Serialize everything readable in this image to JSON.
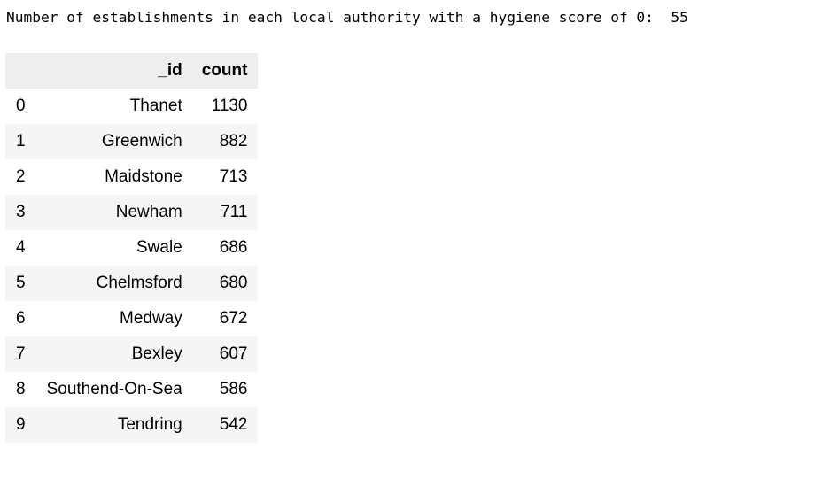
{
  "output": {
    "message": "Number of establishments in each local authority with a hygiene score of 0:  55"
  },
  "table": {
    "columns": [
      "_id",
      "count"
    ],
    "rows": [
      {
        "index": "0",
        "id": "Thanet",
        "count": "1130"
      },
      {
        "index": "1",
        "id": "Greenwich",
        "count": "882"
      },
      {
        "index": "2",
        "id": "Maidstone",
        "count": "713"
      },
      {
        "index": "3",
        "id": "Newham",
        "count": "711"
      },
      {
        "index": "4",
        "id": "Swale",
        "count": "686"
      },
      {
        "index": "5",
        "id": "Chelmsford",
        "count": "680"
      },
      {
        "index": "6",
        "id": "Medway",
        "count": "672"
      },
      {
        "index": "7",
        "id": "Bexley",
        "count": "607"
      },
      {
        "index": "8",
        "id": "Southend-On-Sea",
        "count": "586"
      },
      {
        "index": "9",
        "id": "Tendring",
        "count": "542"
      }
    ]
  }
}
